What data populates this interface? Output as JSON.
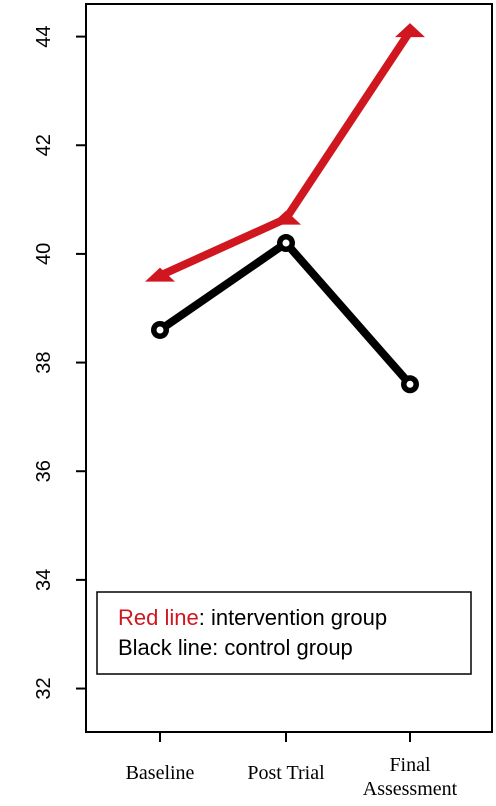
{
  "chart_data": {
    "type": "line",
    "categories": [
      "Baseline",
      "Post Trial",
      "Final Assessment"
    ],
    "category_lines": [
      [
        "Baseline"
      ],
      [
        "Post Trial"
      ],
      [
        "Final",
        "Assessment"
      ]
    ],
    "yticks": [
      32,
      34,
      36,
      38,
      40,
      42,
      44
    ],
    "ylim": [
      31.2,
      44.6
    ],
    "series": [
      {
        "name": "intervention group",
        "values": [
          39.6,
          40.65,
          44.1
        ],
        "color": "#d0161e",
        "marker": "triangle"
      },
      {
        "name": "control group",
        "values": [
          38.6,
          40.2,
          37.6
        ],
        "color": "#000000",
        "marker": "circle"
      }
    ],
    "legend": {
      "placement": "bottom-left",
      "entries": [
        {
          "key": "Red line",
          "text": ": intervention group",
          "key_color": "#d0161e"
        },
        {
          "key": "Black line",
          "text": ": control group",
          "key_color": "#000000"
        }
      ]
    },
    "grid": false,
    "title": "",
    "xlabel": "",
    "ylabel": ""
  }
}
